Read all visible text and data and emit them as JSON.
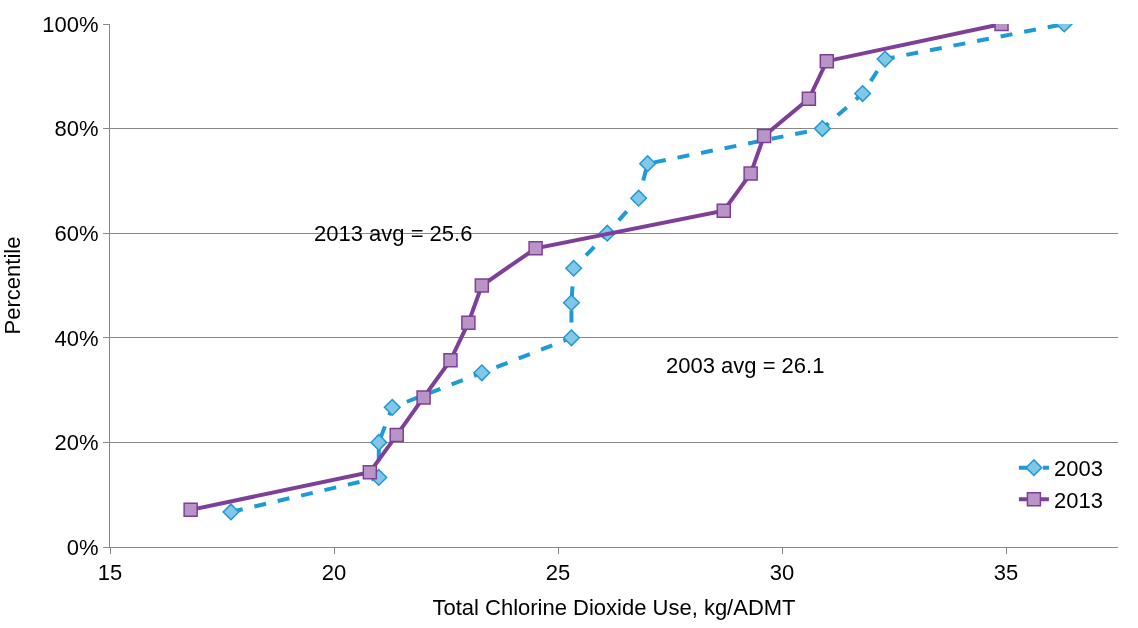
{
  "chart_data": {
    "type": "line",
    "xlabel": "Total Chlorine Dioxide Use, kg/ADMT",
    "ylabel": "Percentile",
    "xlim": [
      15,
      37.5
    ],
    "xticks": [
      15,
      20,
      25,
      30,
      35
    ],
    "ylim": [
      0,
      100
    ],
    "yticks": [
      {
        "value": 0,
        "label": "0%"
      },
      {
        "value": 20,
        "label": "20%"
      },
      {
        "value": 40,
        "label": "40%"
      },
      {
        "value": 60,
        "label": "60%"
      },
      {
        "value": 80,
        "label": "80%"
      },
      {
        "value": 100,
        "label": "100%"
      }
    ],
    "grid": "y",
    "legend": "bottom right",
    "annotations": [
      "2013 avg = 25.6",
      "2003 avg = 26.1"
    ],
    "series": [
      {
        "name": "2003",
        "color": "#1e9ad6",
        "marker": "diamond",
        "line_style": "dashed",
        "x": [
          17.7,
          21.0,
          21.0,
          21.3,
          23.3,
          25.3,
          25.3,
          25.35,
          26.1,
          26.8,
          27.0,
          30.9,
          31.8,
          32.3,
          36.3
        ],
        "values": [
          6.7,
          13.3,
          20,
          26.7,
          33.3,
          40,
          46.7,
          53.3,
          60,
          66.7,
          73.3,
          80,
          86.7,
          93.3,
          100
        ]
      },
      {
        "name": "2013",
        "color": "#7f3f98",
        "marker": "square",
        "line_style": "solid",
        "x": [
          16.8,
          20.8,
          21.4,
          22.0,
          22.6,
          23.0,
          23.3,
          24.5,
          28.7,
          29.3,
          29.6,
          30.6,
          31.0,
          34.9
        ],
        "values": [
          7.1,
          14.3,
          21.4,
          28.6,
          35.7,
          42.9,
          50,
          57.1,
          64.3,
          71.4,
          78.6,
          85.7,
          92.9,
          100
        ]
      }
    ]
  }
}
